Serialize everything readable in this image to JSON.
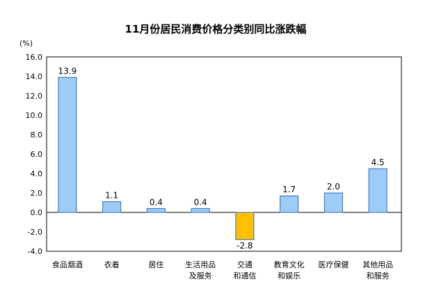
{
  "chart_data": {
    "type": "bar",
    "title": "11月份居民消费价格分类别同比涨跌幅",
    "ylabel": "(%)",
    "xlabel": "",
    "ylim": [
      -4.0,
      16.0
    ],
    "yticks": [
      "16.0",
      "14.0",
      "12.0",
      "10.0",
      "8.0",
      "6.0",
      "4.0",
      "2.0",
      "0.0",
      "-2.0",
      "-4.0"
    ],
    "categories": [
      [
        "食品烟酒"
      ],
      [
        "衣着"
      ],
      [
        "居住"
      ],
      [
        "生活用品",
        "及服务"
      ],
      [
        "交通",
        "和通信"
      ],
      [
        "教育文化",
        "和娱乐"
      ],
      [
        "医疗保健"
      ],
      [
        "其他用品",
        "和服务"
      ]
    ],
    "values": [
      13.9,
      1.1,
      0.4,
      0.4,
      -2.8,
      1.7,
      2.0,
      4.5
    ],
    "value_labels": [
      "13.9",
      "1.1",
      "0.4",
      "0.4",
      "-2.8",
      "1.7",
      "2.0",
      "4.5"
    ],
    "colors": {
      "positive": "#9DCCF6",
      "negative": "#FFC000",
      "bar_edge": "#2D6BB5",
      "axis": "#000000"
    },
    "grid": false,
    "legend": "none"
  }
}
